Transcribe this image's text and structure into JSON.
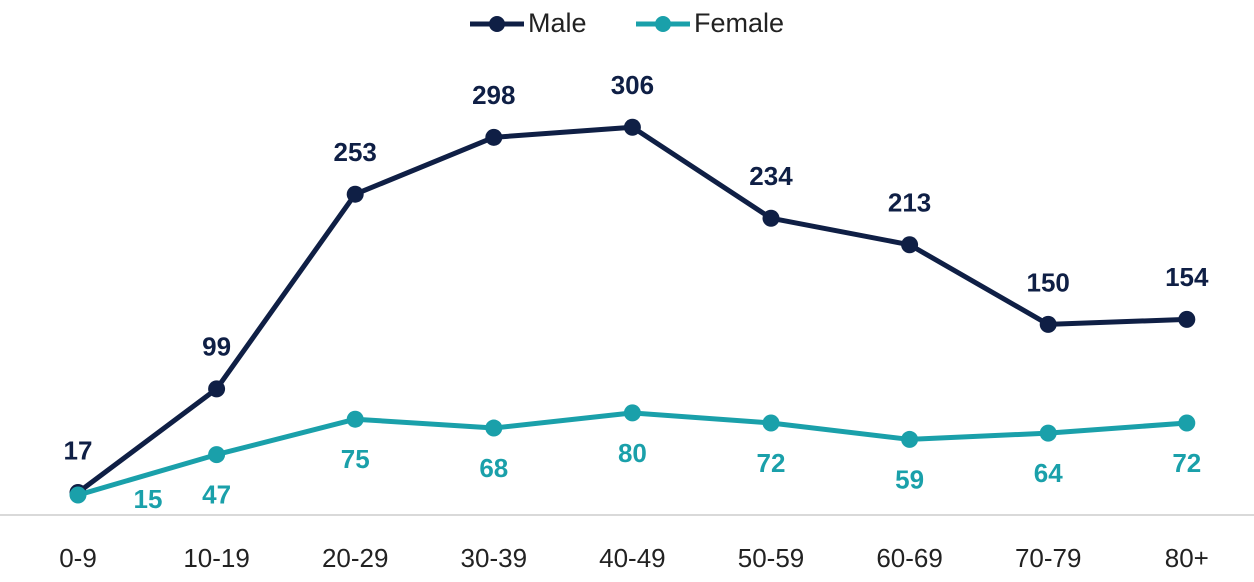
{
  "chart_data": {
    "type": "line",
    "categories": [
      "0-9",
      "10-19",
      "20-29",
      "30-39",
      "40-49",
      "50-59",
      "60-69",
      "70-79",
      "80+"
    ],
    "series": [
      {
        "name": "Male",
        "color": "#0f1f45",
        "values": [
          17,
          99,
          253,
          298,
          306,
          234,
          213,
          150,
          154
        ]
      },
      {
        "name": "Female",
        "color": "#1aa0aa",
        "values": [
          15,
          47,
          75,
          68,
          80,
          72,
          59,
          64,
          72
        ]
      }
    ],
    "legend": "top"
  }
}
